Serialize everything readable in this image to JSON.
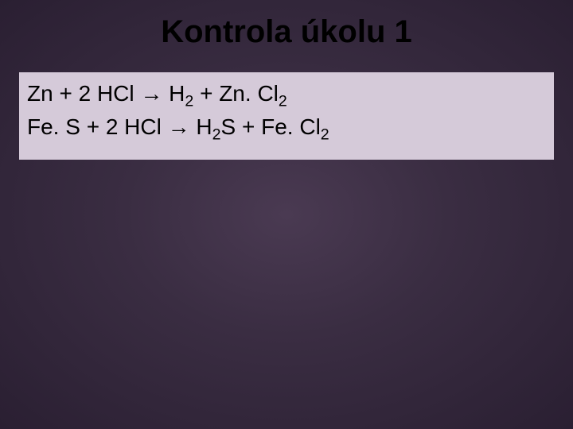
{
  "slide": {
    "title": "Kontrola úkolu 1",
    "background_gradient": {
      "center": "#4a3a52",
      "mid": "#3a2d42",
      "edge": "#2a1f32"
    },
    "title_color": "#000000",
    "title_fontsize": 40,
    "content_box": {
      "background_color": "#d5cad9",
      "text_color": "#000000",
      "fontsize": 28,
      "equations": [
        {
          "tokens": [
            {
              "t": "Zn + 2 HCl → H"
            },
            {
              "t": "2",
              "sub": true
            },
            {
              "t": " + Zn. Cl"
            },
            {
              "t": "2",
              "sub": true
            }
          ]
        },
        {
          "tokens": [
            {
              "t": " Fe. S + 2 HCl → H"
            },
            {
              "t": "2",
              "sub": true
            },
            {
              "t": "S + Fe. Cl"
            },
            {
              "t": "2",
              "sub": true
            }
          ]
        }
      ]
    }
  }
}
